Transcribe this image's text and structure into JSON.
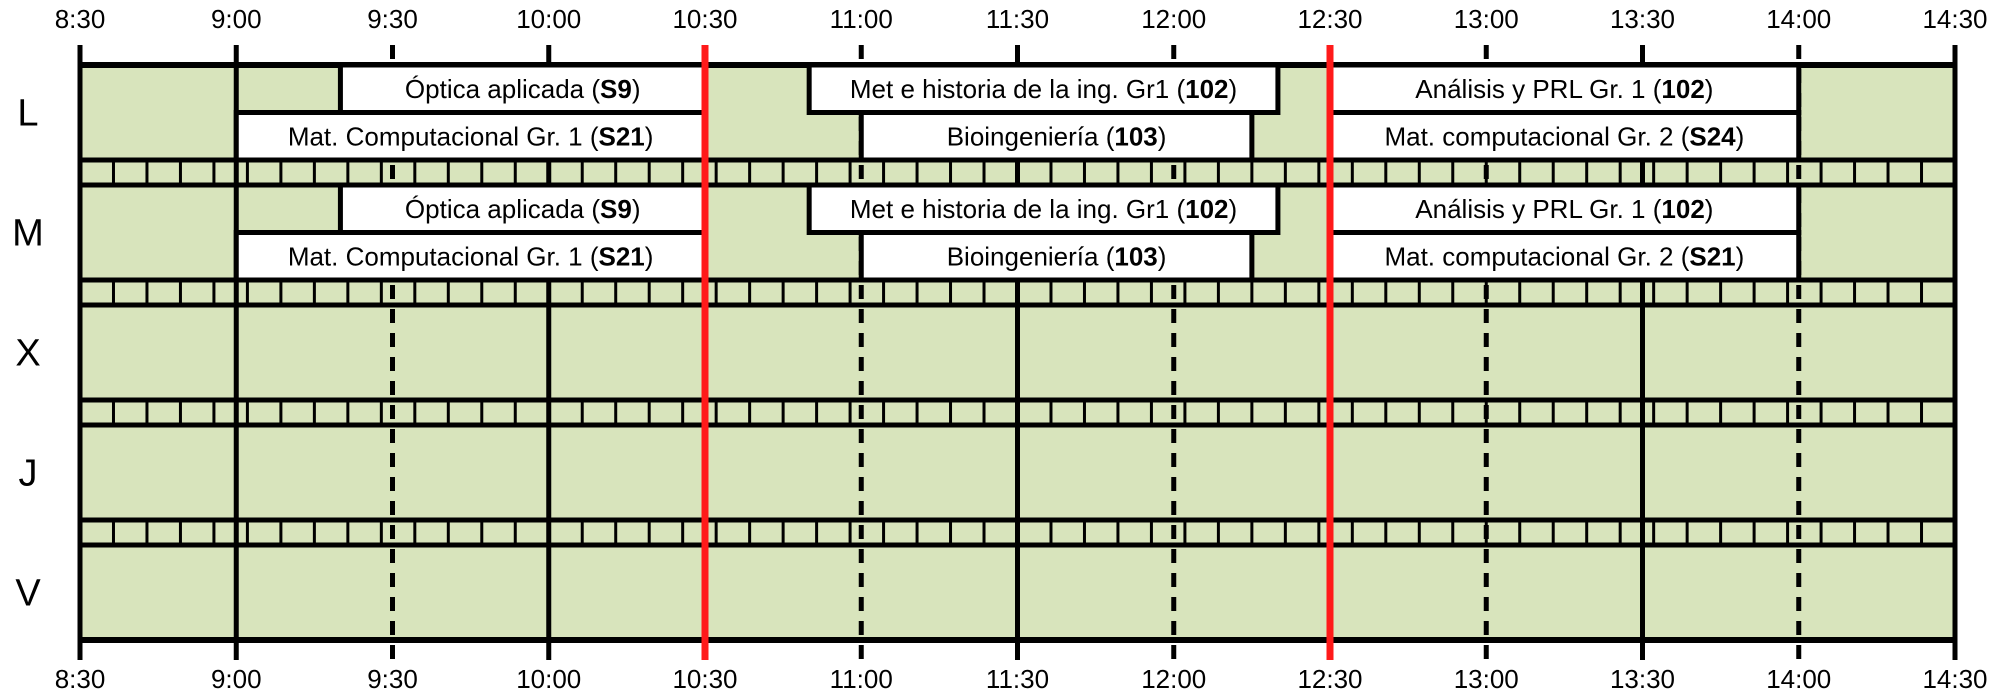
{
  "times": [
    "8:30",
    "9:00",
    "9:30",
    "10:00",
    "10:30",
    "11:00",
    "11:30",
    "12:00",
    "12:30",
    "13:00",
    "13:30",
    "14:00",
    "14:30"
  ],
  "days": [
    "L",
    "M",
    "X",
    "J",
    "V"
  ],
  "colors": {
    "cell": "#d8e4bc",
    "line": "#000000",
    "break_line": "#ff1a1a",
    "event_bg": "#ffffff"
  },
  "breaks": [
    "10:30",
    "12:30"
  ],
  "dashed_times": [
    "9:30",
    "11:00",
    "12:00",
    "13:00",
    "14:00"
  ],
  "events": [
    {
      "day": "L",
      "slot": "top",
      "start": "9:20",
      "end": "10:30",
      "label": "Óptica aplicada (",
      "room": "S9",
      "suffix": ")"
    },
    {
      "day": "L",
      "slot": "bottom",
      "start": "9:00",
      "end": "10:30",
      "label": "Mat. Computacional Gr. 1 (",
      "room": "S21",
      "suffix": ")"
    },
    {
      "day": "L",
      "slot": "top",
      "start": "10:50",
      "end": "12:20",
      "label": "Met e historia de la ing. Gr1 (",
      "room": "102",
      "suffix": ")"
    },
    {
      "day": "L",
      "slot": "bottom",
      "start": "11:00",
      "end": "12:15",
      "label": "Bioingeniería (",
      "room": "103",
      "suffix": ")"
    },
    {
      "day": "L",
      "slot": "top",
      "start": "12:30",
      "end": "14:00",
      "label": "Análisis y PRL Gr. 1  (",
      "room": "102",
      "suffix": ")"
    },
    {
      "day": "L",
      "slot": "bottom",
      "start": "12:30",
      "end": "14:00",
      "label": "Mat. computacional Gr. 2 (",
      "room": "S24",
      "suffix": ")"
    },
    {
      "day": "M",
      "slot": "top",
      "start": "9:20",
      "end": "10:30",
      "label": "Óptica aplicada (",
      "room": "S9",
      "suffix": ")"
    },
    {
      "day": "M",
      "slot": "bottom",
      "start": "9:00",
      "end": "10:30",
      "label": "Mat. Computacional Gr. 1 (",
      "room": "S21",
      "suffix": ")"
    },
    {
      "day": "M",
      "slot": "top",
      "start": "10:50",
      "end": "12:20",
      "label": "Met e historia de la ing. Gr1 (",
      "room": "102",
      "suffix": ")"
    },
    {
      "day": "M",
      "slot": "bottom",
      "start": "11:00",
      "end": "12:15",
      "label": "Bioingeniería (",
      "room": "103",
      "suffix": ")"
    },
    {
      "day": "M",
      "slot": "top",
      "start": "12:30",
      "end": "14:00",
      "label": "Análisis y PRL Gr. 1  (",
      "room": "102",
      "suffix": ")"
    },
    {
      "day": "M",
      "slot": "bottom",
      "start": "12:30",
      "end": "14:00",
      "label": "Mat. computacional Gr. 2 (",
      "room": "S21",
      "suffix": ")"
    }
  ]
}
